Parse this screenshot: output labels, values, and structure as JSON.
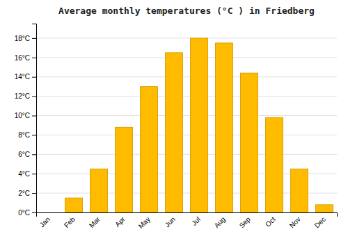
{
  "chart_data": {
    "type": "bar",
    "title": "Average monthly temperatures (°C ) in Friedberg",
    "categories": [
      "Jan",
      "Feb",
      "Mar",
      "Apr",
      "May",
      "Jun",
      "Jul",
      "Aug",
      "Sep",
      "Oct",
      "Nov",
      "Dec"
    ],
    "values": [
      0.0,
      1.5,
      4.5,
      8.8,
      13.0,
      16.5,
      18.0,
      17.5,
      14.4,
      9.8,
      4.5,
      0.8
    ],
    "color": "#FFBB00",
    "ylim": [
      0,
      19.5
    ],
    "yticks": [
      {
        "value": 0,
        "label": "0°C"
      },
      {
        "value": 2,
        "label": "2°C"
      },
      {
        "value": 4,
        "label": "4°C"
      },
      {
        "value": 6,
        "label": "6°C"
      },
      {
        "value": 8,
        "label": "8°C"
      },
      {
        "value": 10,
        "label": "10°C"
      },
      {
        "value": 12,
        "label": "12°C"
      },
      {
        "value": 14,
        "label": "14°C"
      },
      {
        "value": 16,
        "label": "16°C"
      },
      {
        "value": 18,
        "label": "18°C"
      }
    ],
    "grid": true
  }
}
